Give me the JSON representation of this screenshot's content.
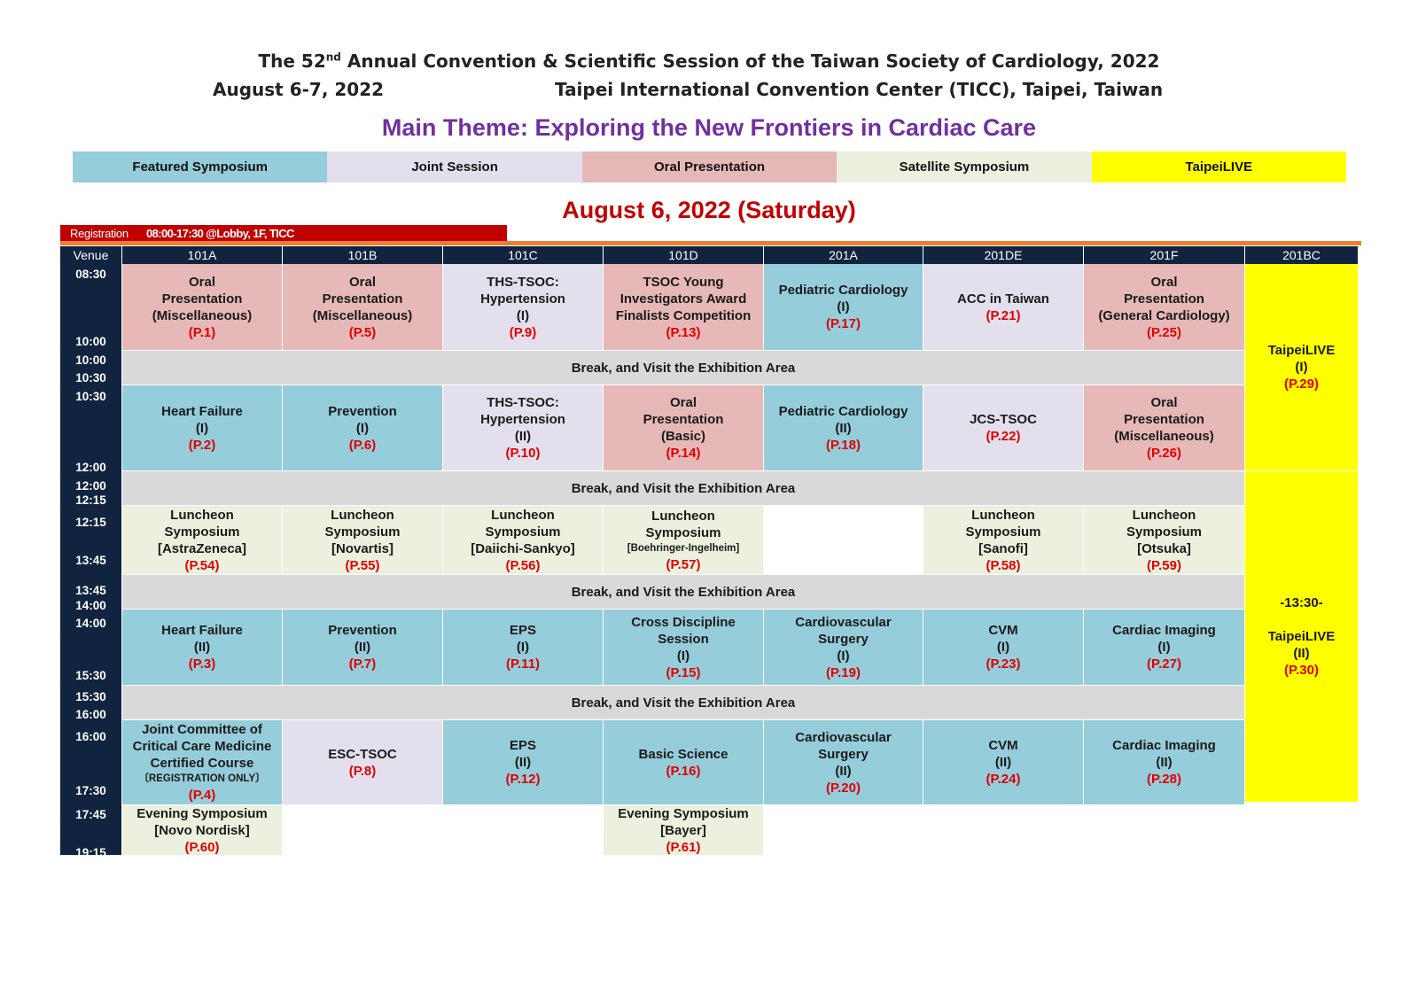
{
  "title": {
    "pre": "The 52",
    "sup": "nd",
    "post": " Annual Convention & Scientific Session of the Taiwan Society of Cardiology, 2022",
    "dates": "August 6-7, 2022",
    "venue": "Taipei International Convention Center (TICC), Taipei, Taiwan"
  },
  "theme": "Main Theme: Exploring the New Frontiers in Cardiac Care",
  "legend": [
    {
      "label": "Featured Symposium",
      "color": "#95cddb"
    },
    {
      "label": "Joint Session",
      "color": "#e4dfec"
    },
    {
      "label": "Oral Presentation",
      "color": "#e6b8b7"
    },
    {
      "label": "Satellite Symposium",
      "color": "#ebf1de"
    },
    {
      "label": "TaipeiLIVE",
      "color": "#ffff00"
    }
  ],
  "day": "August 6, 2022 (Saturday)",
  "registration": {
    "label": "Registration",
    "info": "08:00-17:30 @Lobby, 1F, TICC"
  },
  "header": [
    "Venue",
    "101A",
    "101B",
    "101C",
    "101D",
    "201A",
    "201DE",
    "201F",
    "201BC"
  ],
  "times": [
    {
      "t": "08:30"
    },
    {
      "t": "10:00"
    },
    {
      "t": "10:00"
    },
    {
      "t": "10:30"
    },
    {
      "t": "10:30"
    },
    {
      "t": "12:00"
    },
    {
      "t": "12:00"
    },
    {
      "t": "12:15"
    },
    {
      "t": "12:15"
    },
    {
      "t": "13:45"
    },
    {
      "t": "13:45"
    },
    {
      "t": "14:00"
    },
    {
      "t": "14:00"
    },
    {
      "t": "15:30"
    },
    {
      "t": "15:30"
    },
    {
      "t": "16:00"
    },
    {
      "t": "16:00"
    },
    {
      "t": "17:30"
    },
    {
      "t": "17:45"
    },
    {
      "t": "19:15"
    }
  ],
  "break_label": "Break, and Visit the Exhibition Area",
  "sessions": {
    "r1": [
      {
        "type": "oral",
        "lines": [
          "Oral",
          "Presentation",
          "(Miscellaneous)"
        ],
        "page": "(P.1)"
      },
      {
        "type": "oral",
        "lines": [
          "Oral",
          "Presentation",
          "(Miscellaneous)"
        ],
        "page": "(P.5)"
      },
      {
        "type": "joint",
        "lines": [
          "THS-TSOC:",
          "Hypertension",
          "(I)"
        ],
        "page": "(P.9)"
      },
      {
        "type": "oral",
        "lines": [
          "TSOC Young",
          "Investigators Award",
          "Finalists Competition"
        ],
        "page": "(P.13)"
      },
      {
        "type": "featured",
        "lines": [
          "Pediatric Cardiology",
          "(I)"
        ],
        "page": "(P.17)"
      },
      {
        "type": "joint",
        "lines": [
          "ACC in Taiwan"
        ],
        "page": "(P.21)"
      },
      {
        "type": "oral",
        "lines": [
          "Oral",
          "Presentation",
          "(General Cardiology)"
        ],
        "page": "(P.25)"
      }
    ],
    "r2": [
      {
        "type": "featured",
        "lines": [
          "Heart Failure",
          "(I)"
        ],
        "page": "(P.2)"
      },
      {
        "type": "featured",
        "lines": [
          "Prevention",
          "(I)"
        ],
        "page": "(P.6)"
      },
      {
        "type": "joint",
        "lines": [
          "THS-TSOC:",
          "Hypertension",
          "(II)"
        ],
        "page": "(P.10)"
      },
      {
        "type": "oral",
        "lines": [
          "Oral",
          "Presentation",
          "(Basic)"
        ],
        "page": "(P.14)"
      },
      {
        "type": "featured",
        "lines": [
          "Pediatric Cardiology",
          "(II)"
        ],
        "page": "(P.18)"
      },
      {
        "type": "joint",
        "lines": [
          "JCS-TSOC"
        ],
        "page": "(P.22)"
      },
      {
        "type": "oral",
        "lines": [
          "Oral",
          "Presentation",
          "(Miscellaneous)"
        ],
        "page": "(P.26)"
      }
    ],
    "r3": [
      {
        "type": "sat",
        "lines": [
          "Luncheon",
          "Symposium",
          "[AstraZeneca]"
        ],
        "page": "(P.54)"
      },
      {
        "type": "sat",
        "lines": [
          "Luncheon",
          "Symposium",
          "[Novartis]"
        ],
        "page": "(P.55)"
      },
      {
        "type": "sat",
        "lines": [
          "Luncheon",
          "Symposium",
          "[Daiichi-Sankyo]"
        ],
        "page": "(P.56)"
      },
      {
        "type": "sat",
        "lines": [
          "Luncheon",
          "Symposium"
        ],
        "small": "[Boehringer-Ingelheim]",
        "page": "(P.57)"
      },
      {
        "type": "empty",
        "lines": [],
        "page": ""
      },
      {
        "type": "sat",
        "lines": [
          "Luncheon",
          "Symposium",
          "[Sanofi]"
        ],
        "page": "(P.58)"
      },
      {
        "type": "sat",
        "lines": [
          "Luncheon",
          "Symposium",
          "[Otsuka]"
        ],
        "page": "(P.59)"
      }
    ],
    "r4": [
      {
        "type": "featured",
        "lines": [
          "Heart Failure",
          "(II)"
        ],
        "page": "(P.3)"
      },
      {
        "type": "featured",
        "lines": [
          "Prevention",
          "(II)"
        ],
        "page": "(P.7)"
      },
      {
        "type": "featured",
        "lines": [
          "EPS",
          "(I)"
        ],
        "page": "(P.11)"
      },
      {
        "type": "featured",
        "lines": [
          "Cross Discipline",
          "Session",
          "(I)"
        ],
        "page": "(P.15)"
      },
      {
        "type": "featured",
        "lines": [
          "Cardiovascular",
          "Surgery",
          "(I)"
        ],
        "page": "(P.19)"
      },
      {
        "type": "featured",
        "lines": [
          "CVM",
          "(I)"
        ],
        "page": "(P.23)"
      },
      {
        "type": "featured",
        "lines": [
          "Cardiac Imaging",
          "(I)"
        ],
        "page": "(P.27)"
      }
    ],
    "r5": [
      {
        "type": "featured",
        "lines": [
          "Joint Committee of",
          "Critical Care Medicine",
          "Certified Course"
        ],
        "small": "〔REGISTRATION ONLY〕",
        "page": "(P.4)"
      },
      {
        "type": "joint",
        "lines": [
          "ESC-TSOC"
        ],
        "page": "(P.8)"
      },
      {
        "type": "featured",
        "lines": [
          "EPS",
          "(II)"
        ],
        "page": "(P.12)"
      },
      {
        "type": "featured",
        "lines": [
          "Basic Science"
        ],
        "page": "(P.16)"
      },
      {
        "type": "featured",
        "lines": [
          "Cardiovascular",
          "Surgery",
          "(II)"
        ],
        "page": "(P.20)"
      },
      {
        "type": "featured",
        "lines": [
          "CVM",
          "(II)"
        ],
        "page": "(P.24)"
      },
      {
        "type": "featured",
        "lines": [
          "Cardiac Imaging",
          "(II)"
        ],
        "page": "(P.28)"
      }
    ],
    "r6": [
      {
        "type": "sat",
        "lines": [
          "Evening Symposium",
          "[Novo Nordisk]"
        ],
        "page": "(P.60)"
      },
      {
        "type": "none",
        "lines": [],
        "page": ""
      },
      {
        "type": "none",
        "lines": [],
        "page": ""
      },
      {
        "type": "sat",
        "lines": [
          "Evening Symposium",
          "[Bayer]"
        ],
        "page": "(P.61)"
      }
    ]
  },
  "taipeilive": [
    {
      "lines": [
        "TaipeiLIVE",
        "(I)"
      ],
      "page": "(P.29)"
    },
    {
      "lines": [
        "-13:30-",
        "",
        "TaipeiLIVE",
        "(II)"
      ],
      "page": "(P.30)"
    }
  ]
}
